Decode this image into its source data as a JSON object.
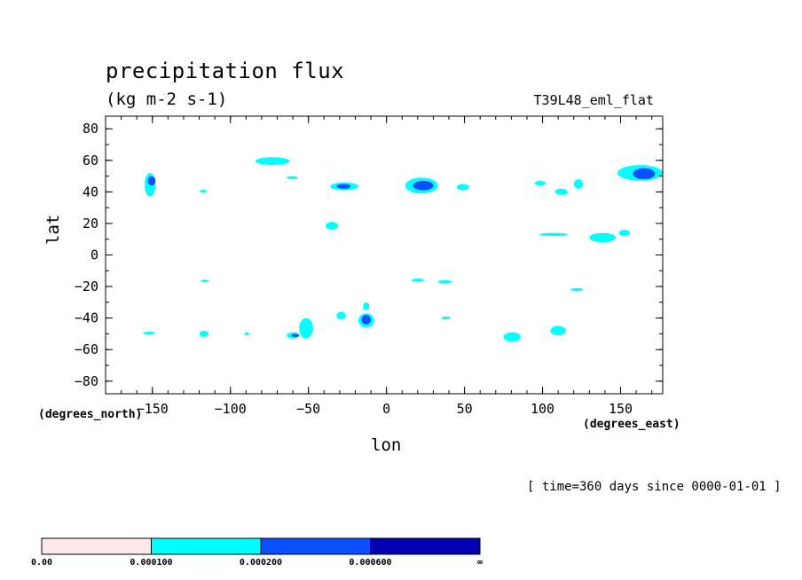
{
  "chart_data": {
    "type": "heatmap",
    "title": "precipitation flux",
    "units": "(kg m-2 s-1)",
    "run_name": "T39L48_eml_flat",
    "xlabel": "lon",
    "ylabel": "lat",
    "x_units_note": "(degrees_east)",
    "y_units_note": "(degrees_north)",
    "time_note": "[ time=360 days since 0000-01-01 ]",
    "xlim": [
      -180,
      177
    ],
    "ylim": [
      -88,
      88
    ],
    "x_ticks": [
      -150,
      -100,
      -50,
      0,
      50,
      100,
      150
    ],
    "y_ticks": [
      80,
      60,
      40,
      20,
      0,
      -20,
      -40,
      -60,
      -80
    ],
    "colorbar": {
      "levels": [
        "0.00",
        "0.000100",
        "0.000200",
        "0.000600",
        "∞"
      ],
      "colors": [
        "#ffe8e8",
        "#00ffff",
        "#0a50ff",
        "#0000b4"
      ]
    },
    "regions": [
      {
        "level": 1,
        "lon": [
          -155,
          -148
        ],
        "lat": [
          37,
          52
        ]
      },
      {
        "level": 2,
        "lon": [
          -153,
          -148
        ],
        "lat": [
          44,
          50
        ]
      },
      {
        "level": 1,
        "lon": [
          -120,
          -115
        ],
        "lat": [
          40,
          41
        ]
      },
      {
        "level": 1,
        "lon": [
          -84,
          -62
        ],
        "lat": [
          57,
          62
        ]
      },
      {
        "level": 1,
        "lon": [
          -64,
          -57
        ],
        "lat": [
          48,
          50
        ]
      },
      {
        "level": 1,
        "lon": [
          -36,
          -18
        ],
        "lat": [
          41,
          46
        ]
      },
      {
        "level": 2,
        "lon": [
          -32,
          -23
        ],
        "lat": [
          42,
          45
        ]
      },
      {
        "level": 1,
        "lon": [
          -39,
          -31
        ],
        "lat": [
          16,
          21
        ]
      },
      {
        "level": 1,
        "lon": [
          12,
          33
        ],
        "lat": [
          39,
          49
        ]
      },
      {
        "level": 2,
        "lon": [
          17,
          30
        ],
        "lat": [
          41,
          47
        ]
      },
      {
        "level": 1,
        "lon": [
          45,
          53
        ],
        "lat": [
          41,
          45
        ]
      },
      {
        "level": 1,
        "lon": [
          95,
          102
        ],
        "lat": [
          44,
          47
        ]
      },
      {
        "level": 1,
        "lon": [
          108,
          116
        ],
        "lat": [
          38,
          42
        ]
      },
      {
        "level": 1,
        "lon": [
          120,
          126
        ],
        "lat": [
          42,
          48
        ]
      },
      {
        "level": 1,
        "lon": [
          148,
          177
        ],
        "lat": [
          47,
          57
        ]
      },
      {
        "level": 2,
        "lon": [
          158,
          172
        ],
        "lat": [
          48,
          55
        ]
      },
      {
        "level": 1,
        "lon": [
          98,
          116
        ],
        "lat": [
          12,
          14
        ]
      },
      {
        "level": 1,
        "lon": [
          130,
          147
        ],
        "lat": [
          8,
          14
        ]
      },
      {
        "level": 1,
        "lon": [
          149,
          156
        ],
        "lat": [
          12,
          16
        ]
      },
      {
        "level": 1,
        "lon": [
          -18,
          -8
        ],
        "lat": [
          -46,
          -37
        ]
      },
      {
        "level": 2,
        "lon": [
          -16,
          -10
        ],
        "lat": [
          -44,
          -38
        ]
      },
      {
        "level": 1,
        "lon": [
          -15,
          -11
        ],
        "lat": [
          -35,
          -30
        ]
      },
      {
        "level": 1,
        "lon": [
          -32,
          -26
        ],
        "lat": [
          -41,
          -36
        ]
      },
      {
        "level": 1,
        "lon": [
          -56,
          -47
        ],
        "lat": [
          -53,
          -40
        ]
      },
      {
        "level": 1,
        "lon": [
          -64,
          -56
        ],
        "lat": [
          -53,
          -49
        ]
      },
      {
        "level": 2,
        "lon": [
          -61,
          -56
        ],
        "lat": [
          -52,
          -50
        ]
      },
      {
        "level": 1,
        "lon": [
          -156,
          -148
        ],
        "lat": [
          -50,
          -49
        ]
      },
      {
        "level": 1,
        "lon": [
          -120,
          -114
        ],
        "lat": [
          -52,
          -48
        ]
      },
      {
        "level": 1,
        "lon": [
          -91,
          -88
        ],
        "lat": [
          -51,
          -49
        ]
      },
      {
        "level": 1,
        "lon": [
          16,
          24
        ],
        "lat": [
          -17,
          -15
        ]
      },
      {
        "level": 1,
        "lon": [
          33,
          42
        ],
        "lat": [
          -18,
          -16
        ]
      },
      {
        "level": 1,
        "lon": [
          35,
          41
        ],
        "lat": [
          -41,
          -39
        ]
      },
      {
        "level": 1,
        "lon": [
          75,
          86
        ],
        "lat": [
          -55,
          -49
        ]
      },
      {
        "level": 1,
        "lon": [
          105,
          115
        ],
        "lat": [
          -51,
          -45
        ]
      },
      {
        "level": 1,
        "lon": [
          118,
          126
        ],
        "lat": [
          -23,
          -21
        ]
      },
      {
        "level": 1,
        "lon": [
          -119,
          -114
        ],
        "lat": [
          -17,
          -16
        ]
      }
    ]
  }
}
